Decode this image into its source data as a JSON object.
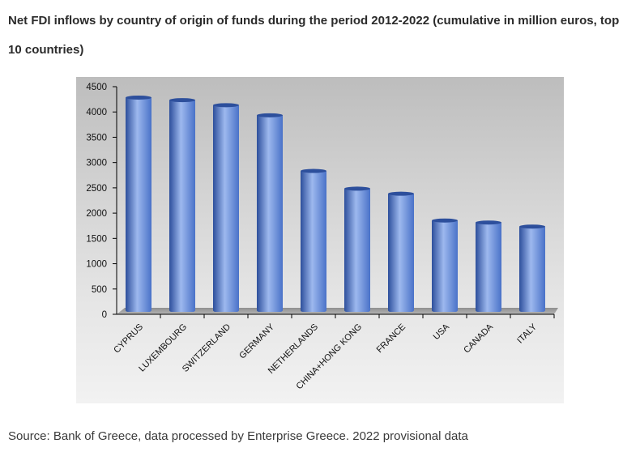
{
  "header": {
    "title": "Net FDI inflows by country of origin of funds during the period 2012-2022 (cumulative in million euros, top 10 countries)"
  },
  "footer": {
    "source": "Source: Bank of Greece, data processed by Enterprise Greece. 2022 provisional data"
  },
  "colors": {
    "bar_dark": "#2d4f9c",
    "bar_mid": "#4a72c8",
    "bar_light": "#9db8ee",
    "axis": "#000000"
  },
  "chart_data": {
    "type": "bar",
    "title": "Net FDI inflows by country of origin of funds during the period 2012-2022 (cumulative in million euros, top 10 countries)",
    "xlabel": "",
    "ylabel": "",
    "ylim": [
      0,
      4500
    ],
    "yticks": [
      0,
      500,
      1000,
      1500,
      2000,
      2500,
      3000,
      3500,
      4000,
      4500
    ],
    "grid": false,
    "categories": [
      "CYPRUS",
      "LUXEMBOURG",
      "SWITZERLAND",
      "GERMANY",
      "NETHERLANDS",
      "CHINA+HONG KONG",
      "FRANCE",
      "USA",
      "CANADA",
      "ITALY"
    ],
    "values": [
      4300,
      4250,
      4150,
      3950,
      2850,
      2500,
      2400,
      1870,
      1830,
      1750
    ]
  }
}
